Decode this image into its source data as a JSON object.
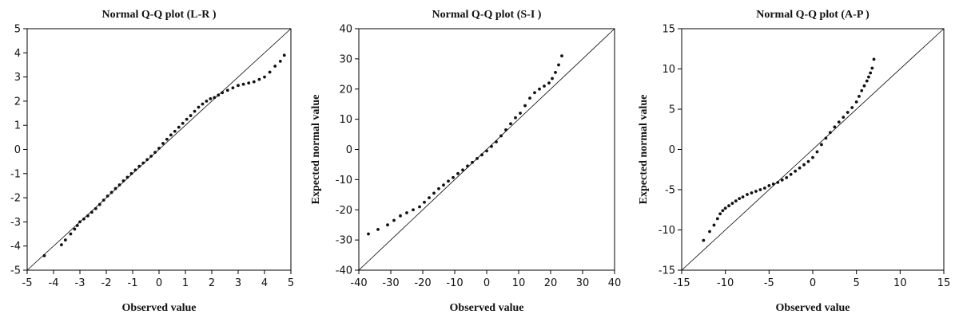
{
  "chart_data": [
    {
      "type": "scatter",
      "title": "Normal Q-Q plot (L-R )",
      "xlabel": "Observed value",
      "ylabel": "",
      "xlim": [
        -5,
        5
      ],
      "ylim": [
        -5,
        5
      ],
      "xticks": [
        -5,
        -4,
        -3,
        -2,
        -1,
        0,
        1,
        2,
        3,
        4,
        5
      ],
      "yticks": [
        -5,
        -4,
        -3,
        -2,
        -1,
        0,
        1,
        2,
        3,
        4,
        5
      ],
      "grid": false,
      "reference_line": true,
      "series": [
        {
          "x": [
            -4.35,
            -3.7,
            -3.55,
            -3.35,
            -3.2,
            -3.1,
            -3.0,
            -2.85,
            -2.7,
            -2.55,
            -2.4,
            -2.25,
            -2.1,
            -1.95,
            -1.8,
            -1.65,
            -1.5,
            -1.35,
            -1.2,
            -1.05,
            -0.9,
            -0.75,
            -0.6,
            -0.45,
            -0.3,
            -0.15,
            0.0,
            0.15,
            0.3,
            0.45,
            0.6,
            0.75,
            0.9,
            1.05,
            1.2,
            1.35,
            1.5,
            1.65,
            1.8,
            1.95,
            2.1,
            2.25,
            2.4,
            2.6,
            2.8,
            3.0,
            3.2,
            3.4,
            3.6,
            3.8,
            4.0,
            4.2,
            4.4,
            4.6,
            4.75
          ],
          "y": [
            -4.4,
            -3.95,
            -3.75,
            -3.5,
            -3.3,
            -3.15,
            -3.0,
            -2.88,
            -2.75,
            -2.6,
            -2.45,
            -2.28,
            -2.1,
            -1.93,
            -1.78,
            -1.62,
            -1.47,
            -1.3,
            -1.15,
            -1.0,
            -0.85,
            -0.7,
            -0.56,
            -0.42,
            -0.28,
            -0.12,
            0.05,
            0.25,
            0.42,
            0.6,
            0.75,
            0.92,
            1.08,
            1.25,
            1.4,
            1.58,
            1.75,
            1.88,
            2.0,
            2.1,
            2.15,
            2.25,
            2.35,
            2.45,
            2.55,
            2.65,
            2.7,
            2.75,
            2.8,
            2.9,
            3.0,
            3.2,
            3.45,
            3.65,
            3.9
          ]
        }
      ]
    },
    {
      "type": "scatter",
      "title": "Normal Q-Q  plot (S-I )",
      "xlabel": "Observed value",
      "ylabel": "Expected normal value",
      "xlim": [
        -40,
        40
      ],
      "ylim": [
        -40,
        40
      ],
      "xticks": [
        -40,
        -30,
        -20,
        -10,
        0,
        10,
        20,
        30,
        40
      ],
      "yticks": [
        -40,
        -30,
        -20,
        -10,
        0,
        10,
        20,
        30,
        40
      ],
      "grid": false,
      "reference_line": true,
      "series": [
        {
          "x": [
            -37,
            -34,
            -31,
            -29,
            -27,
            -25,
            -23,
            -21,
            -19.5,
            -18,
            -16.5,
            -15,
            -13.5,
            -12,
            -10.5,
            -9,
            -7.5,
            -6,
            -4.5,
            -3,
            -1.5,
            0,
            1.5,
            3,
            4.5,
            6,
            7.5,
            9,
            10.5,
            12,
            13.5,
            15,
            16.5,
            18,
            19.5,
            20.5,
            21.5,
            22.5,
            23.5
          ],
          "y": [
            -28,
            -26.5,
            -25,
            -23.5,
            -22,
            -21,
            -20,
            -19,
            -17.5,
            -16,
            -14.5,
            -13,
            -11.8,
            -10.5,
            -9.3,
            -8,
            -6.8,
            -5.5,
            -4.3,
            -3,
            -1.8,
            -0.5,
            1,
            2.5,
            4.5,
            6.5,
            8.5,
            10.5,
            12,
            14.5,
            17,
            18.8,
            20,
            21,
            22,
            23.5,
            25.5,
            28,
            31
          ]
        }
      ]
    },
    {
      "type": "scatter",
      "title": "Normal Q-Q  plot (A-P )",
      "xlabel": "Observed value",
      "ylabel": "Expected normal value",
      "xlim": [
        -15,
        15
      ],
      "ylim": [
        -15,
        15
      ],
      "xticks": [
        -15,
        -10,
        -5,
        0,
        5,
        10,
        15
      ],
      "yticks": [
        -15,
        -10,
        -5,
        0,
        5,
        10,
        15
      ],
      "grid": false,
      "reference_line": true,
      "series": [
        {
          "x": [
            -12.5,
            -11.8,
            -11.3,
            -10.9,
            -10.6,
            -10.3,
            -10.0,
            -9.6,
            -9.2,
            -8.8,
            -8.4,
            -8.0,
            -7.5,
            -7.0,
            -6.5,
            -6.0,
            -5.5,
            -5.0,
            -4.5,
            -4.0,
            -3.5,
            -3.0,
            -2.5,
            -2.0,
            -1.5,
            -1.0,
            -0.5,
            0.0,
            0.5,
            1.0,
            1.5,
            2.0,
            2.5,
            3.0,
            3.5,
            4.0,
            4.5,
            5.0,
            5.3,
            5.6,
            5.9,
            6.2,
            6.4,
            6.6,
            6.8,
            7.0
          ],
          "y": [
            -11.3,
            -10.2,
            -9.4,
            -8.6,
            -8.0,
            -7.6,
            -7.3,
            -7.0,
            -6.7,
            -6.4,
            -6.1,
            -5.9,
            -5.6,
            -5.4,
            -5.2,
            -5.0,
            -4.8,
            -4.5,
            -4.3,
            -4.1,
            -3.8,
            -3.5,
            -3.1,
            -2.7,
            -2.3,
            -1.9,
            -1.5,
            -1.0,
            -0.3,
            0.6,
            1.4,
            2.1,
            2.8,
            3.4,
            4.0,
            4.6,
            5.2,
            5.9,
            6.6,
            7.3,
            7.9,
            8.5,
            9.0,
            9.5,
            10.1,
            11.2
          ]
        }
      ]
    }
  ]
}
